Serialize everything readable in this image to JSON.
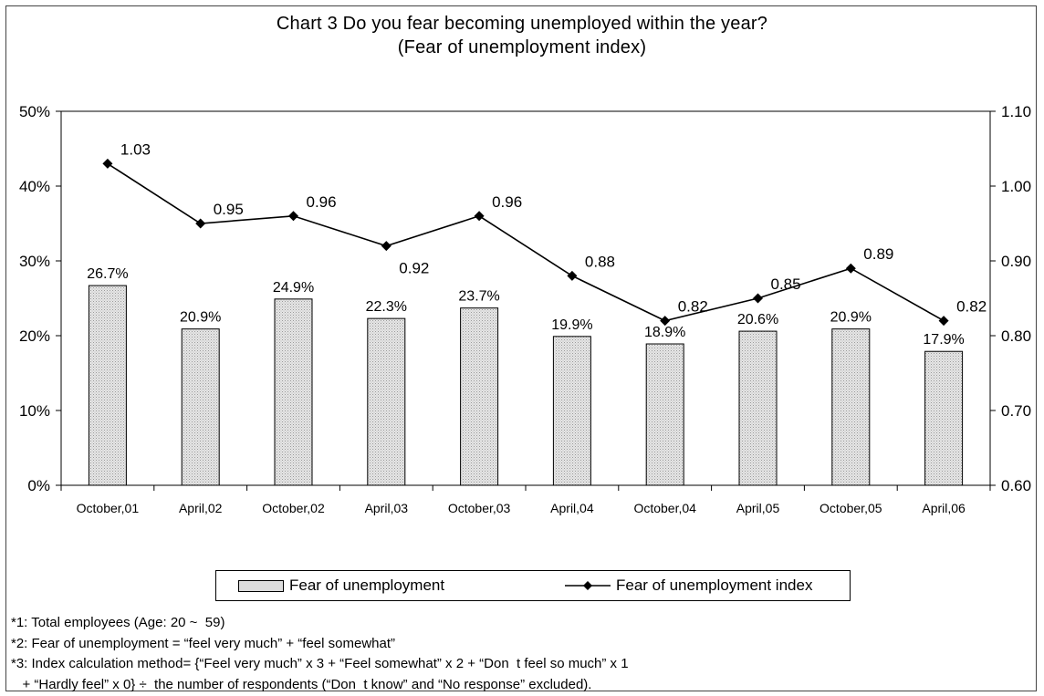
{
  "title": "Chart 3  Do you fear becoming unemployed within the year?",
  "subtitle": "(Fear of unemployment index)",
  "chart_data": {
    "type": "bar",
    "categories": [
      "October,01",
      "April,02",
      "October,02",
      "April,03",
      "October,03",
      "April,04",
      "October,04",
      "April,05",
      "October,05",
      "April,06"
    ],
    "series": [
      {
        "name": "Fear of unemployment",
        "type": "bar",
        "axis": "left",
        "values": [
          26.7,
          20.9,
          24.9,
          22.3,
          23.7,
          19.9,
          18.9,
          20.6,
          20.9,
          17.9
        ],
        "labels": [
          "26.7%",
          "20.9%",
          "24.9%",
          "22.3%",
          "23.7%",
          "19.9%",
          "18.9%",
          "20.6%",
          "20.9%",
          "17.9%"
        ]
      },
      {
        "name": "Fear of unemployment index",
        "type": "line",
        "axis": "right",
        "values": [
          1.03,
          0.95,
          0.96,
          0.92,
          0.96,
          0.88,
          0.82,
          0.85,
          0.89,
          0.82
        ],
        "labels": [
          "1.03",
          "0.95",
          "0.96",
          "0.92",
          "0.96",
          "0.88",
          "0.82",
          "0.85",
          "0.89",
          "0.82"
        ]
      }
    ],
    "y_left": {
      "ylim": [
        0,
        50
      ],
      "ticks": [
        0,
        10,
        20,
        30,
        40,
        50
      ],
      "tick_labels": [
        "0%",
        "10%",
        "20%",
        "30%",
        "40%",
        "50%"
      ]
    },
    "y_right": {
      "ylim": [
        0.6,
        1.1
      ],
      "ticks": [
        0.6,
        0.7,
        0.8,
        0.9,
        1.0,
        1.1
      ],
      "tick_labels": [
        "0.60",
        "0.70",
        "0.80",
        "0.90",
        "1.00",
        "1.10"
      ]
    },
    "grid": false,
    "legend_position": "bottom",
    "colors": {
      "bar_fill": "#dcdcdc",
      "bar_stroke": "#000000",
      "line": "#000000",
      "axis": "#000000"
    }
  },
  "footnotes": [
    "*1: Total employees (Age: 20 ~  59)",
    "*2: Fear of unemployment = “feel very much” + “feel somewhat”",
    "*3: Index calculation method= {“Feel very much” x 3 + “Feel somewhat” x 2 + “Don  t feel so much” x 1",
    "   + “Hardly feel” x 0} ÷  the number of respondents (“Don  t know” and “No response” excluded)."
  ]
}
